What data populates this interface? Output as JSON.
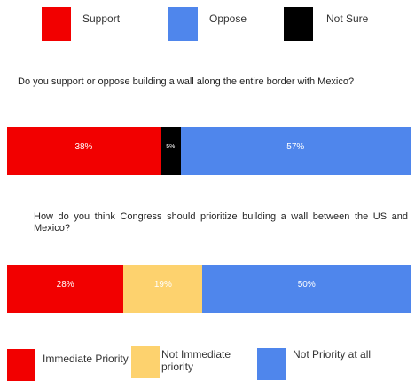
{
  "chart_data": [
    {
      "type": "stacked-bar",
      "orientation": "horizontal",
      "title": "Do you support or oppose building a wall along the entire border with Mexico?",
      "legend": "top",
      "series": [
        {
          "name": "Support",
          "color": "#f20000",
          "values": [
            38
          ],
          "value_labels": [
            "38%"
          ]
        },
        {
          "name": "Not Sure",
          "color": "#000000",
          "values": [
            5
          ],
          "value_labels": [
            "5%"
          ]
        },
        {
          "name": "Oppose",
          "color": "#4f86ec",
          "values": [
            57
          ],
          "value_labels": [
            "57%"
          ]
        }
      ]
    },
    {
      "type": "stacked-bar",
      "orientation": "horizontal",
      "title": "How do you think Congress should prioritize building a wall between the US and Mexico?",
      "legend": "bottom",
      "series": [
        {
          "name": "Immediate Priority",
          "color": "#f20000",
          "values": [
            28
          ],
          "value_labels": [
            "28%"
          ]
        },
        {
          "name": "Not Immediate priority",
          "color": "#fdd26e",
          "values": [
            19
          ],
          "value_labels": [
            "19%"
          ]
        },
        {
          "name": "Not Priority at all",
          "color": "#4f86ec",
          "values": [
            50
          ],
          "value_labels": [
            "50%"
          ]
        }
      ]
    }
  ]
}
